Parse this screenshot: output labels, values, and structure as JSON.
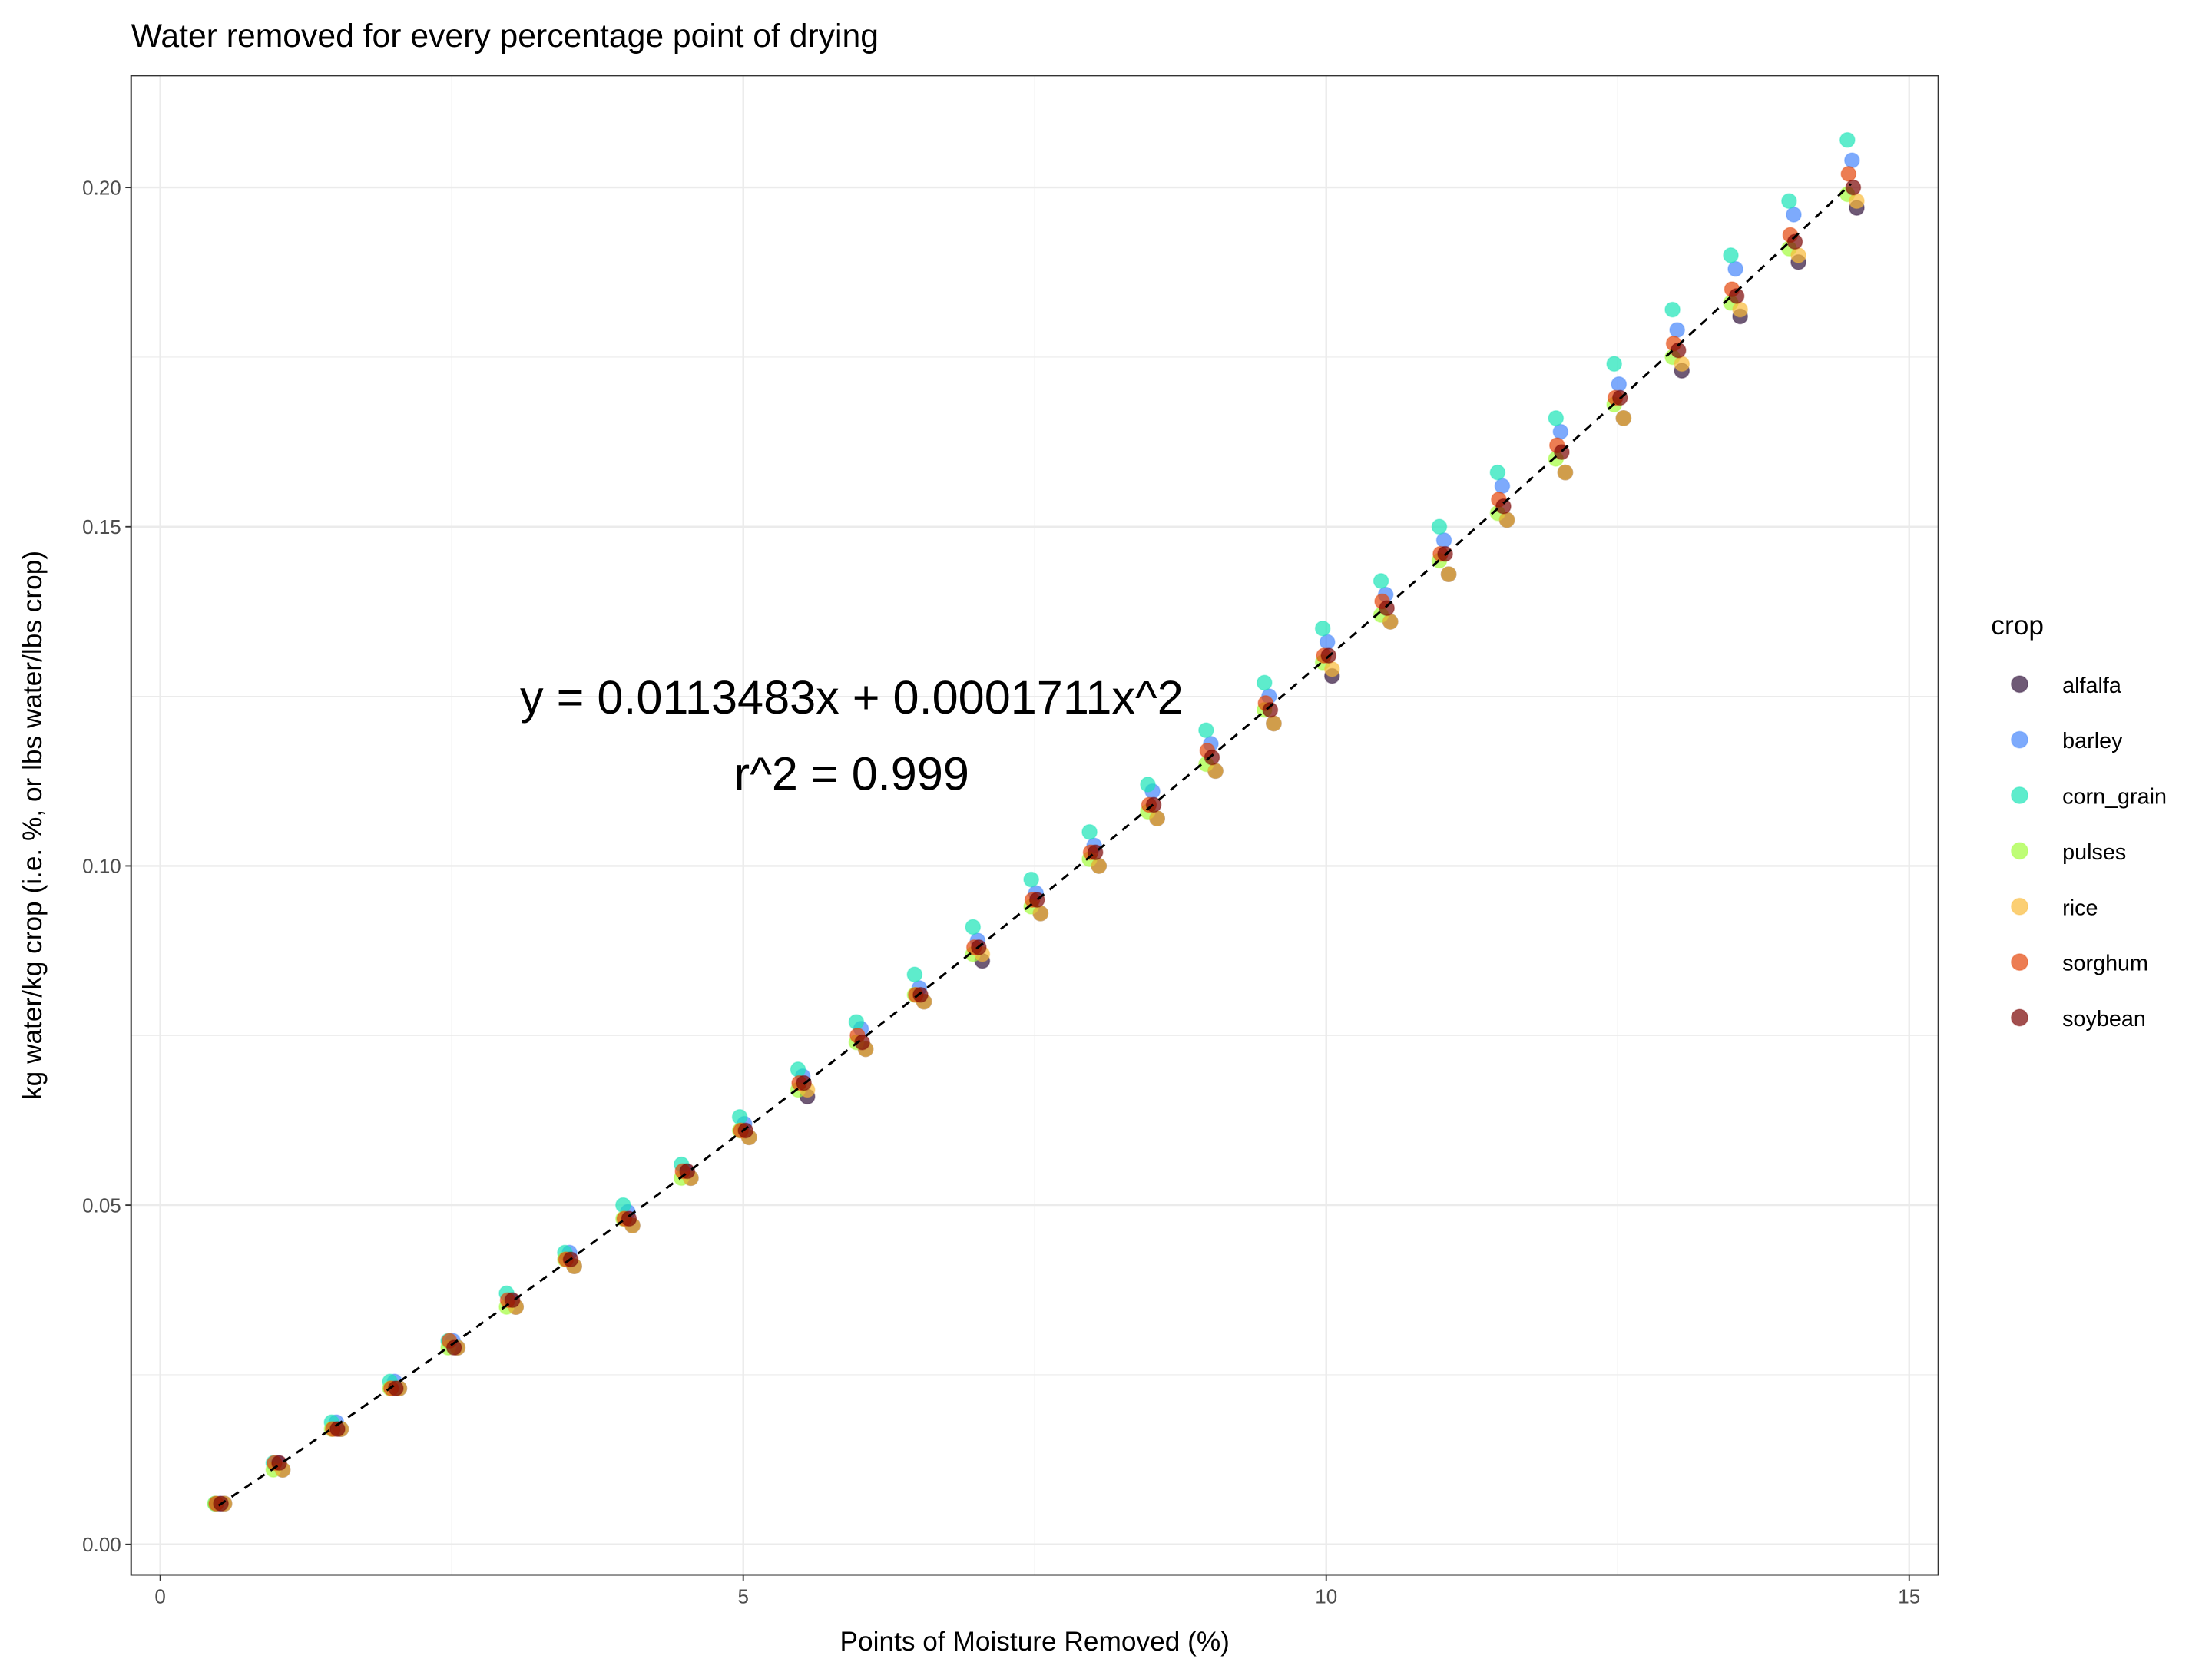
{
  "chart_data": {
    "type": "scatter",
    "title": "Water removed for every percentage point of drying",
    "xlabel": "Points of Moisture Removed (%)",
    "ylabel": "kg water/kg crop (i.e. %, or lbs water/lbs crop)",
    "xlim": [
      -0.25,
      15.25
    ],
    "ylim": [
      -0.0045,
      0.2165
    ],
    "x_ticks": [
      0,
      5,
      10,
      15
    ],
    "x_tick_labels": [
      "0",
      "5",
      "10",
      "15"
    ],
    "y_ticks": [
      0,
      0.05,
      0.1,
      0.15,
      0.2
    ],
    "y_tick_labels": [
      "0.00",
      "0.05",
      "0.10",
      "0.15",
      "0.20"
    ],
    "grid": true,
    "legend_title": "crop",
    "legend_position": "right",
    "x": [
      0.5,
      1,
      1.5,
      2,
      2.5,
      3,
      3.5,
      4,
      4.5,
      5,
      5.5,
      6,
      6.5,
      7,
      7.5,
      8,
      8.5,
      9,
      9.5,
      10,
      10.5,
      11,
      11.5,
      12,
      12.5,
      13,
      13.5,
      14,
      14.5
    ],
    "series": [
      {
        "name": "alfalfa",
        "color": "#30123B",
        "x_jitter": 0.05,
        "values": [
          0.006,
          0.011,
          0.017,
          0.023,
          0.029,
          0.035,
          0.041,
          0.047,
          0.054,
          0.06,
          0.066,
          0.073,
          0.08,
          0.086,
          0.093,
          0.1,
          0.107,
          0.114,
          0.121,
          0.128,
          0.136,
          0.143,
          0.151,
          0.158,
          0.166,
          0.173,
          0.181,
          0.189,
          0.197
        ]
      },
      {
        "name": "barley",
        "color": "#4686FB",
        "x_jitter": 0.01,
        "values": [
          0.006,
          0.012,
          0.018,
          0.024,
          0.03,
          0.036,
          0.043,
          0.049,
          0.055,
          0.062,
          0.069,
          0.076,
          0.082,
          0.089,
          0.096,
          0.103,
          0.111,
          0.118,
          0.125,
          0.133,
          0.14,
          0.148,
          0.156,
          0.164,
          0.171,
          0.179,
          0.188,
          0.196,
          0.204
        ]
      },
      {
        "name": "corn_grain",
        "color": "#1AE4B6",
        "x_jitter": -0.03,
        "values": [
          0.006,
          0.012,
          0.018,
          0.024,
          0.03,
          0.037,
          0.043,
          0.05,
          0.056,
          0.063,
          0.07,
          0.077,
          0.084,
          0.091,
          0.098,
          0.105,
          0.112,
          0.12,
          0.127,
          0.135,
          0.142,
          0.15,
          0.158,
          0.166,
          0.174,
          0.182,
          0.19,
          0.198,
          0.207
        ]
      },
      {
        "name": "pulses",
        "color": "#A2FC3C",
        "x_jitter": -0.03,
        "values": [
          0.006,
          0.011,
          0.017,
          0.023,
          0.029,
          0.035,
          0.042,
          0.048,
          0.054,
          0.061,
          0.067,
          0.074,
          0.081,
          0.087,
          0.094,
          0.101,
          0.108,
          0.115,
          0.123,
          0.13,
          0.137,
          0.145,
          0.152,
          0.16,
          0.168,
          0.175,
          0.183,
          0.191,
          0.199
        ]
      },
      {
        "name": "rice",
        "color": "#FABA39",
        "x_jitter": 0.05,
        "values": [
          0.006,
          0.011,
          0.017,
          0.023,
          0.029,
          0.035,
          0.041,
          0.047,
          0.054,
          0.06,
          0.067,
          0.073,
          0.08,
          0.087,
          0.093,
          0.1,
          0.107,
          0.114,
          0.121,
          0.129,
          0.136,
          0.143,
          0.151,
          0.158,
          0.166,
          0.174,
          0.182,
          0.19,
          0.198
        ]
      },
      {
        "name": "sorghum",
        "color": "#E4460A",
        "x_jitter": -0.02,
        "values": [
          0.006,
          0.012,
          0.017,
          0.023,
          0.03,
          0.036,
          0.042,
          0.048,
          0.055,
          0.061,
          0.068,
          0.075,
          0.081,
          0.088,
          0.095,
          0.102,
          0.109,
          0.117,
          0.124,
          0.131,
          0.139,
          0.146,
          0.154,
          0.162,
          0.169,
          0.177,
          0.185,
          0.193,
          0.202
        ]
      },
      {
        "name": "soybean",
        "color": "#7A0403",
        "x_jitter": 0.02,
        "values": [
          0.006,
          0.012,
          0.017,
          0.023,
          0.029,
          0.036,
          0.042,
          0.048,
          0.055,
          0.061,
          0.068,
          0.074,
          0.081,
          0.088,
          0.095,
          0.102,
          0.109,
          0.116,
          0.123,
          0.131,
          0.138,
          0.146,
          0.153,
          0.161,
          0.169,
          0.176,
          0.184,
          0.192,
          0.2
        ]
      }
    ],
    "fit": {
      "type": "line",
      "style": "dashed",
      "color": "#000000",
      "a": 0.0113483,
      "b": 0.0001711,
      "x_range": [
        0.5,
        14.5
      ]
    },
    "annotations": [
      {
        "text": "y = 0.0113483x + 0.0001711x^2",
        "x": 5.93,
        "y": 0.125
      },
      {
        "text": "r^2 = 0.999",
        "x": 5.93,
        "y": 0.1137
      }
    ]
  }
}
